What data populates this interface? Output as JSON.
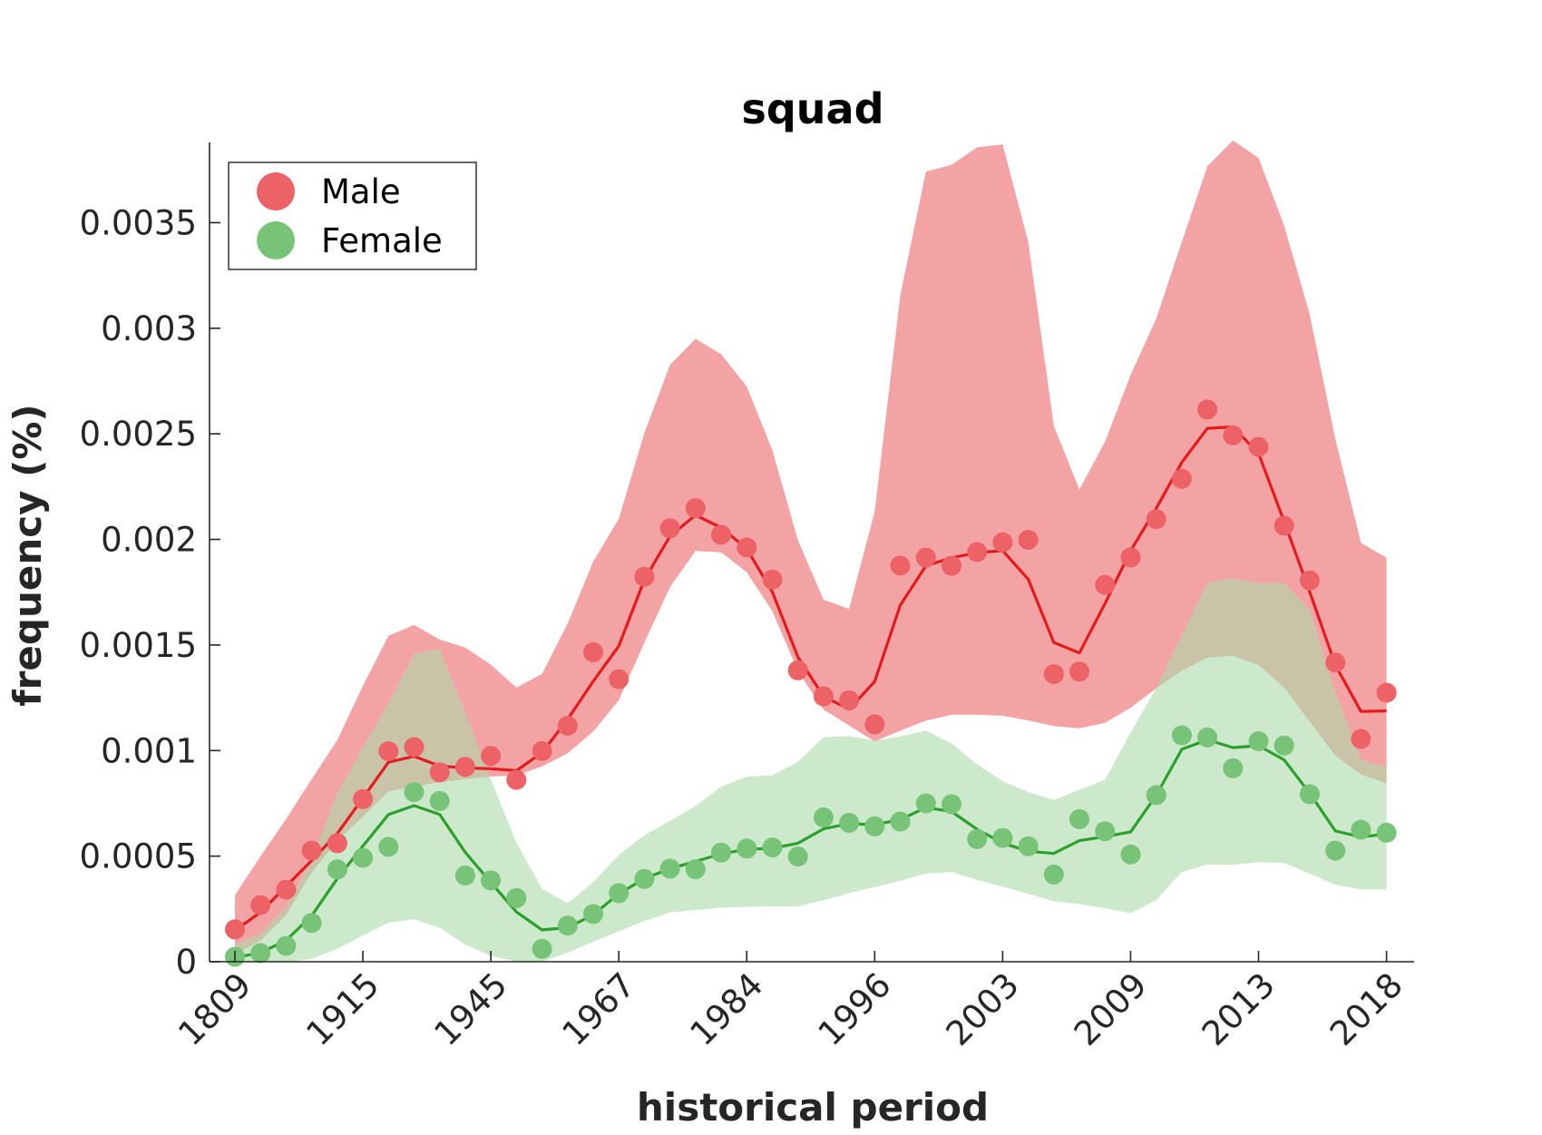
{
  "chart_data": {
    "type": "line",
    "title": "squad",
    "xlabel": "historical period",
    "ylabel": "frequency (%)",
    "x_tick_labels": [
      "1809",
      "1915",
      "1945",
      "1967",
      "1984",
      "1996",
      "2003",
      "2009",
      "2013",
      "2018"
    ],
    "y_ticks": [
      0,
      0.0005,
      0.001,
      0.0015,
      0.002,
      0.0025,
      0.003,
      0.0035
    ],
    "y_tick_labels": [
      "0",
      "0.0005",
      "0.001",
      "0.0015",
      "0.002",
      "0.0025",
      "0.003",
      "0.0035"
    ],
    "ylim": [
      0,
      0.00388
    ],
    "n_points": 46,
    "legend": {
      "position": "top-left"
    },
    "series": [
      {
        "name": "Male",
        "color": "#e41a1c",
        "marker_color": "#ec6266",
        "band_color": "#f4a3a5",
        "points": [
          0.000153,
          0.000268,
          0.000341,
          0.000526,
          0.000561,
          0.00077,
          0.000997,
          0.001016,
          0.000897,
          0.000923,
          0.000975,
          0.000861,
          0.000998,
          0.001117,
          0.001466,
          0.001338,
          0.001823,
          0.002053,
          0.002148,
          0.002022,
          0.001962,
          0.00181,
          0.00138,
          0.001257,
          0.001238,
          0.001124,
          0.001876,
          0.001914,
          0.001875,
          0.00194,
          0.001986,
          0.001998,
          0.001362,
          0.001374,
          0.001785,
          0.001915,
          0.002096,
          0.002287,
          0.002615,
          0.002493,
          0.002438,
          0.002065,
          0.001806,
          0.001417,
          0.001055,
          0.001274
        ],
        "line": [
          0.000147,
          0.000234,
          0.000357,
          0.000479,
          0.000607,
          0.000775,
          0.000945,
          0.000973,
          0.000927,
          0.000918,
          0.000914,
          0.000905,
          0.00099,
          0.001148,
          0.001328,
          0.001495,
          0.001809,
          0.002015,
          0.002115,
          0.002056,
          0.001956,
          0.001751,
          0.001443,
          0.001257,
          0.001196,
          0.001327,
          0.001688,
          0.001875,
          0.001913,
          0.001937,
          0.001947,
          0.001811,
          0.001512,
          0.001462,
          0.001696,
          0.001947,
          0.002147,
          0.002365,
          0.002526,
          0.002533,
          0.002407,
          0.002085,
          0.001752,
          0.001405,
          0.001185,
          0.001188
        ],
        "band_upper": [
          0.000316,
          0.000499,
          0.000676,
          0.000865,
          0.00105,
          0.001307,
          0.001544,
          0.001595,
          0.001526,
          0.001488,
          0.001407,
          0.001298,
          0.001363,
          0.001602,
          0.001895,
          0.002098,
          0.002504,
          0.002826,
          0.00295,
          0.002877,
          0.002724,
          0.002422,
          0.001996,
          0.001715,
          0.001671,
          0.002131,
          0.003155,
          0.003742,
          0.003774,
          0.003857,
          0.003871,
          0.003409,
          0.002538,
          0.002236,
          0.002462,
          0.002779,
          0.003045,
          0.003409,
          0.003767,
          0.00389,
          0.003807,
          0.003486,
          0.003066,
          0.002475,
          0.001984,
          0.001913
        ],
        "band_lower": [
          3.3e-05,
          0.0001,
          0.000221,
          0.000423,
          0.000573,
          0.000687,
          0.000806,
          0.00083,
          0.00085,
          0.000865,
          0.000877,
          0.000882,
          0.000925,
          0.000987,
          0.00109,
          0.001238,
          0.001512,
          0.001773,
          0.001945,
          0.001939,
          0.001844,
          0.00166,
          0.001376,
          0.001194,
          0.001119,
          0.001043,
          0.001094,
          0.001142,
          0.001169,
          0.00117,
          0.001165,
          0.001143,
          0.001116,
          0.001105,
          0.001131,
          0.001203,
          0.001294,
          0.001379,
          0.00144,
          0.001449,
          0.001405,
          0.001298,
          0.001137,
          0.000976,
          0.000887,
          0.000845
        ]
      },
      {
        "name": "Female",
        "color": "#2ca02c",
        "marker_color": "#77c378",
        "band_color": "#acdaa9",
        "points": [
          2.3e-05,
          4.1e-05,
          7.5e-05,
          0.000184,
          0.000437,
          0.000492,
          0.000544,
          0.000803,
          0.000761,
          0.000408,
          0.000385,
          0.000301,
          6.1e-05,
          0.000171,
          0.000226,
          0.000325,
          0.000392,
          0.000441,
          0.000438,
          0.000517,
          0.000536,
          0.000541,
          0.000498,
          0.000683,
          0.000658,
          0.000641,
          0.000664,
          0.00075,
          0.000746,
          0.000581,
          0.000586,
          0.000547,
          0.000413,
          0.000675,
          0.000618,
          0.000508,
          0.000789,
          0.001072,
          0.001062,
          0.000916,
          0.001044,
          0.001024,
          0.000793,
          0.000526,
          0.000625,
          0.000611
        ],
        "line": [
          2e-05,
          4.2e-05,
          0.000101,
          0.000218,
          0.000394,
          0.000548,
          0.000697,
          0.000739,
          0.000698,
          0.000518,
          0.000375,
          0.000236,
          0.000151,
          0.000161,
          0.000222,
          0.000322,
          0.000393,
          0.000441,
          0.000475,
          0.000511,
          0.000532,
          0.000537,
          0.000561,
          0.000629,
          0.000654,
          0.000649,
          0.000673,
          0.00073,
          0.000711,
          0.000627,
          0.000562,
          0.000523,
          0.000513,
          0.000573,
          0.000592,
          0.000615,
          0.000788,
          0.001006,
          0.001051,
          0.001014,
          0.001023,
          0.000956,
          0.000798,
          0.000619,
          0.000591,
          0.000605
        ],
        "band_upper": [
          8.2e-05,
          0.000133,
          0.000261,
          0.000486,
          0.000801,
          0.001014,
          0.001227,
          0.001459,
          0.001481,
          0.001181,
          0.000864,
          0.000564,
          0.000345,
          0.000277,
          0.000376,
          0.000506,
          0.000599,
          0.000667,
          0.000738,
          0.000829,
          0.000877,
          0.000883,
          0.000947,
          0.001063,
          0.001069,
          0.001047,
          0.001067,
          0.001095,
          0.001034,
          0.000935,
          0.000855,
          0.000804,
          0.000766,
          0.000814,
          0.000863,
          0.001085,
          0.001296,
          0.001548,
          0.001796,
          0.001816,
          0.001793,
          0.001794,
          0.001667,
          0.001276,
          0.000956,
          0.000923
        ],
        "band_lower": [
          0.0,
          0.0,
          0.0,
          1.3e-05,
          6.1e-05,
          0.000124,
          0.000185,
          0.000201,
          0.000161,
          8.1e-05,
          2.8e-05,
          0.0,
          0.0,
          4.3e-05,
          9.5e-05,
          0.000144,
          0.000193,
          0.000233,
          0.000245,
          0.000256,
          0.00026,
          0.000262,
          0.000262,
          0.000291,
          0.000325,
          0.000354,
          0.000383,
          0.000418,
          0.000425,
          0.000388,
          0.000355,
          0.000322,
          0.000286,
          0.000273,
          0.000253,
          0.00023,
          0.000291,
          0.000425,
          0.00046,
          0.000459,
          0.000472,
          0.000468,
          0.000417,
          0.000365,
          0.000342,
          0.000342
        ]
      }
    ]
  }
}
